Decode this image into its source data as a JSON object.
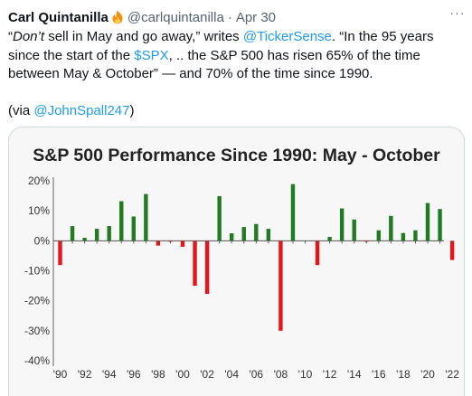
{
  "tweet": {
    "author_name": "Carl Quintanilla",
    "handle": "@carlquintanilla",
    "separator": "·",
    "timestamp": "Apr 30",
    "more_glyph": "···",
    "text": {
      "quote_open": "“",
      "dont": "Don’t",
      "seg1": " sell in May and go away,” writes ",
      "mention1": "@TickerSense",
      "seg2": ". “In the 95 years since the start of the ",
      "cashtag": "$SPX",
      "seg3": ", .. the S&P 500 has risen 65% of the time between May & October” — and 70% of the time since 1990.",
      "via_open": "(via ",
      "mention2": "@JohnSpall247",
      "via_close": ")"
    }
  },
  "colors": {
    "positive": "#227a22",
    "negative": "#e8141a",
    "link": "#1d9bf0"
  },
  "chart_data": {
    "type": "bar",
    "title": "S&P 500 Performance Since 1990: May - October",
    "x": [
      1990,
      1991,
      1992,
      1993,
      1994,
      1995,
      1996,
      1997,
      1998,
      1999,
      2000,
      2001,
      2002,
      2003,
      2004,
      2005,
      2006,
      2007,
      2008,
      2009,
      2010,
      2011,
      2012,
      2013,
      2014,
      2015,
      2016,
      2017,
      2018,
      2019,
      2020,
      2021,
      2022
    ],
    "values": [
      -8.1,
      4.9,
      1.0,
      4.0,
      4.9,
      13.2,
      8.1,
      15.6,
      -1.6,
      -0.3,
      -2.0,
      -15.0,
      -17.7,
      14.9,
      2.5,
      4.6,
      5.6,
      4.0,
      -30.0,
      18.9,
      0.0,
      -8.1,
      1.3,
      10.8,
      7.1,
      -0.3,
      3.5,
      8.3,
      2.6,
      3.5,
      12.6,
      10.6,
      -6.4
    ],
    "x_tick_labels": [
      "'90",
      "'92",
      "'94",
      "'96",
      "'98",
      "'00",
      "'02",
      "'04",
      "'06",
      "'08",
      "'10",
      "'12",
      "'14",
      "'16",
      "'18",
      "'20",
      "'22"
    ],
    "y_tick_labels": [
      "20%",
      "10%",
      "0%",
      "-10%",
      "-20%",
      "-30%",
      "-40%"
    ],
    "y_ticks": [
      20,
      10,
      0,
      -10,
      -20,
      -30,
      -40
    ],
    "ylim": [
      -40,
      20
    ],
    "grid": false,
    "legend": "none"
  }
}
